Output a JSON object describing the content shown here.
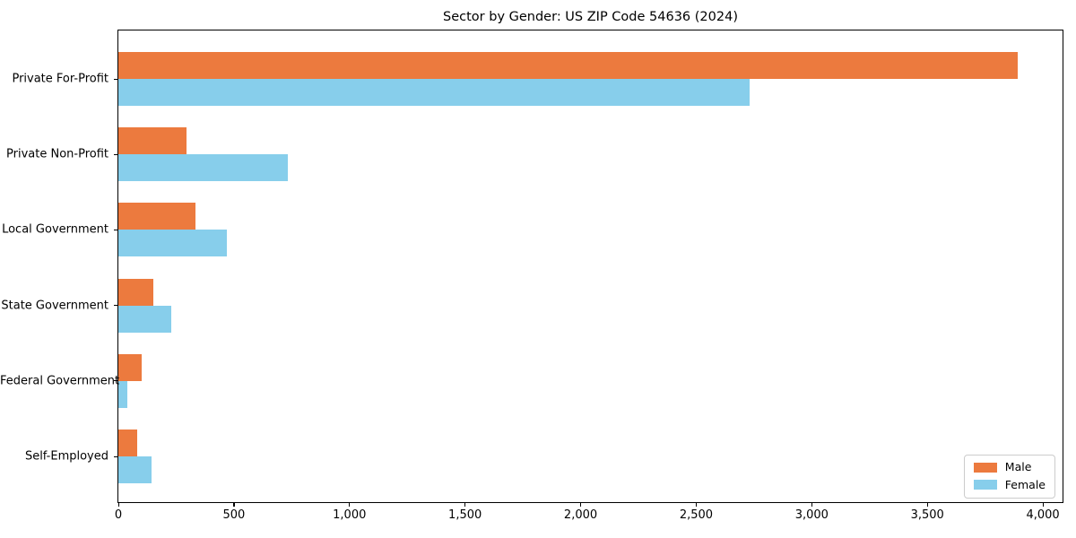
{
  "figure": {
    "background": "#ffffff"
  },
  "chart_data": {
    "type": "bar",
    "orientation": "horizontal",
    "title": "Sector by Gender: US ZIP Code 54636 (2024)",
    "xlabel": "",
    "ylabel": "",
    "categories": [
      "Private For-Profit",
      "Private Non-Profit",
      "Local Government",
      "State Government",
      "Federal Government",
      "Self-Employed"
    ],
    "series": [
      {
        "name": "Male",
        "color": "#ec7a3e",
        "values": [
          3890,
          295,
          335,
          150,
          100,
          80
        ]
      },
      {
        "name": "Female",
        "color": "#87ceeb",
        "values": [
          2730,
          735,
          470,
          230,
          40,
          145
        ]
      }
    ],
    "xlim": [
      0,
      4085
    ],
    "xticks": [
      0,
      500,
      1000,
      1500,
      2000,
      2500,
      3000,
      3500,
      4000
    ],
    "xtick_labels": [
      "0",
      "500",
      "1,000",
      "1,500",
      "2,000",
      "2,500",
      "3,000",
      "3,500",
      "4,000"
    ],
    "grid": false,
    "legend": {
      "position": "lower-right",
      "entries": [
        "Male",
        "Female"
      ]
    }
  }
}
